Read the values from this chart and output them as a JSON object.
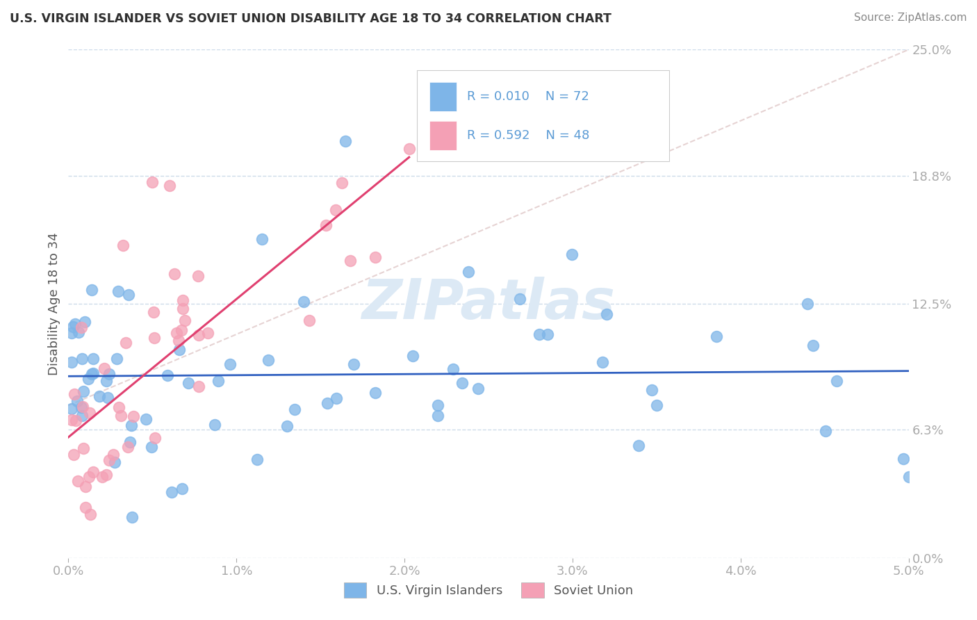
{
  "title": "U.S. VIRGIN ISLANDER VS SOVIET UNION DISABILITY AGE 18 TO 34 CORRELATION CHART",
  "source": "Source: ZipAtlas.com",
  "ylabel": "Disability Age 18 to 34",
  "x_min": 0.0,
  "x_max": 0.05,
  "y_min": 0.0,
  "y_max": 0.25,
  "x_ticks": [
    0.0,
    0.01,
    0.02,
    0.03,
    0.04,
    0.05
  ],
  "x_tick_labels": [
    "0.0%",
    "1.0%",
    "2.0%",
    "3.0%",
    "4.0%",
    "5.0%"
  ],
  "y_ticks": [
    0.0,
    0.063,
    0.125,
    0.188,
    0.25
  ],
  "y_tick_labels": [
    "0.0%",
    "6.3%",
    "12.5%",
    "18.8%",
    "25.0%"
  ],
  "legend_labels": [
    "U.S. Virgin Islanders",
    "Soviet Union"
  ],
  "legend_r": [
    "R = 0.010",
    "R = 0.592"
  ],
  "legend_n": [
    "N = 72",
    "N = 48"
  ],
  "blue_color": "#7EB5E8",
  "pink_color": "#F4A0B5",
  "blue_line_color": "#3060C0",
  "pink_line_color": "#E04070",
  "title_color": "#303030",
  "axis_label_color": "#5B9BD5",
  "watermark_color": "#DCE9F5",
  "background_color": "#FFFFFF",
  "grid_color": "#C8D8E8",
  "diag_color": "#E0C8C8"
}
